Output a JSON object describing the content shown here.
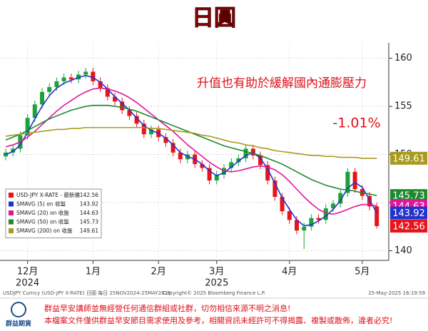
{
  "chart_data": {
    "type": "candlestick",
    "title": "日圓",
    "categories": [
      null,
      null,
      null,
      "12月",
      null,
      null,
      null,
      null,
      null,
      null,
      null,
      null,
      "1月",
      null,
      null,
      null,
      null,
      null,
      null,
      null,
      null,
      "2月",
      null,
      null,
      null,
      null,
      null,
      null,
      null,
      "3月",
      null,
      null,
      null,
      null,
      null,
      null,
      null,
      null,
      null,
      "4月",
      null,
      null,
      null,
      null,
      null,
      null,
      null,
      null,
      null,
      "5月",
      null,
      null
    ],
    "category_years": [
      null,
      null,
      null,
      "2024",
      null,
      null,
      null,
      null,
      null,
      null,
      null,
      null,
      null,
      null,
      null,
      null,
      null,
      null,
      null,
      null,
      null,
      null,
      null,
      null,
      null,
      null,
      null,
      null,
      null,
      "2025",
      null,
      null,
      null,
      null,
      null,
      null,
      null,
      null,
      null,
      null,
      null,
      null,
      null,
      null,
      null,
      null,
      null,
      null,
      null,
      null,
      null,
      null
    ],
    "candles": {
      "name": "USD-JPY X-RATE - 最新價",
      "color": "#e8141c",
      "up_color": "#1aa33a",
      "down_color": "#e8141c",
      "open": [
        149.8,
        150.2,
        150.6,
        152.0,
        153.8,
        155.2,
        156.5,
        157.0,
        157.6,
        158.0,
        157.8,
        158.3,
        158.6,
        157.6,
        156.9,
        156.0,
        155.5,
        154.6,
        154.0,
        153.2,
        152.1,
        152.6,
        151.8,
        151.2,
        150.2,
        149.5,
        150.0,
        149.0,
        148.6,
        147.3,
        147.9,
        148.6,
        149.2,
        149.6,
        150.6,
        149.9,
        148.9,
        147.3,
        145.6,
        144.1,
        143.2,
        142.1,
        142.5,
        143.4,
        143.2,
        144.4,
        144.9,
        146.0,
        148.2,
        146.4,
        145.7,
        144.6
      ],
      "high": [
        150.6,
        151.0,
        152.4,
        154.2,
        155.6,
        156.9,
        157.4,
        158.0,
        158.4,
        158.4,
        158.7,
        159.0,
        159.0,
        158.0,
        157.3,
        156.4,
        155.9,
        155.0,
        154.4,
        153.6,
        153.0,
        153.0,
        152.2,
        151.6,
        150.6,
        150.4,
        150.4,
        149.4,
        149.0,
        148.3,
        149.0,
        149.6,
        150.0,
        151.0,
        151.0,
        150.3,
        149.3,
        147.7,
        146.0,
        144.5,
        143.6,
        142.9,
        143.8,
        143.8,
        144.8,
        145.3,
        146.4,
        148.6,
        148.6,
        146.8,
        146.1,
        145.0
      ],
      "low": [
        149.4,
        149.8,
        150.2,
        151.6,
        153.4,
        154.8,
        156.1,
        156.6,
        157.2,
        157.4,
        157.4,
        157.9,
        157.2,
        156.5,
        155.6,
        155.1,
        154.2,
        153.6,
        152.8,
        151.7,
        151.7,
        151.4,
        150.8,
        149.8,
        149.1,
        149.1,
        148.6,
        148.2,
        146.9,
        146.9,
        147.5,
        148.2,
        148.8,
        149.2,
        149.5,
        148.5,
        146.9,
        145.2,
        143.7,
        142.8,
        141.7,
        140.2,
        142.1,
        142.8,
        142.8,
        144.0,
        144.5,
        145.6,
        146.0,
        145.3,
        144.2,
        142.3
      ],
      "close": [
        150.2,
        150.6,
        152.0,
        153.8,
        155.2,
        156.5,
        157.0,
        157.6,
        158.0,
        157.8,
        158.3,
        158.6,
        157.6,
        156.9,
        156.0,
        155.5,
        154.6,
        154.0,
        153.2,
        152.1,
        152.6,
        151.8,
        151.2,
        150.2,
        149.5,
        150.0,
        149.0,
        148.6,
        147.3,
        147.9,
        148.6,
        149.2,
        149.6,
        150.6,
        149.9,
        148.9,
        147.3,
        145.6,
        144.1,
        143.2,
        142.1,
        142.5,
        143.4,
        143.2,
        144.4,
        144.9,
        146.0,
        148.2,
        146.4,
        145.7,
        144.6,
        142.56
      ]
    },
    "series": [
      {
        "name": "SMAVG (5)  on 收盤",
        "color": "#2233cc",
        "values": [
          150.0,
          150.3,
          151.0,
          152.3,
          153.7,
          155.0,
          156.1,
          156.9,
          157.4,
          157.7,
          158.0,
          158.2,
          158.0,
          157.5,
          156.8,
          156.0,
          155.3,
          154.6,
          153.8,
          153.0,
          152.5,
          152.2,
          151.7,
          151.0,
          150.2,
          149.8,
          149.5,
          149.0,
          148.3,
          147.8,
          148.1,
          148.7,
          149.3,
          149.9,
          150.2,
          149.6,
          148.5,
          147.0,
          145.5,
          144.3,
          143.2,
          142.6,
          142.7,
          143.1,
          143.6,
          144.3,
          145.2,
          146.5,
          147.1,
          146.6,
          145.3,
          143.92
        ]
      },
      {
        "name": "SMAVG (20)  on 收盤",
        "color": "#e0169a",
        "values": [
          150.8,
          151.0,
          151.3,
          151.8,
          152.4,
          153.1,
          153.8,
          154.5,
          155.1,
          155.6,
          156.1,
          156.5,
          156.8,
          156.9,
          156.8,
          156.6,
          156.3,
          155.9,
          155.4,
          154.8,
          154.2,
          153.6,
          153.0,
          152.4,
          151.7,
          151.0,
          150.4,
          149.8,
          149.2,
          148.7,
          148.3,
          148.2,
          148.3,
          148.5,
          148.7,
          148.8,
          148.7,
          148.4,
          147.9,
          147.2,
          146.4,
          145.6,
          144.9,
          144.3,
          143.9,
          143.8,
          144.0,
          144.3,
          144.6,
          144.8,
          144.8,
          144.63
        ]
      },
      {
        "name": "SMAVG (50)  on 收盤",
        "color": "#1e8a2e",
        "values": [
          151.5,
          151.8,
          152.1,
          152.5,
          152.9,
          153.3,
          153.7,
          154.0,
          154.3,
          154.6,
          154.8,
          155.0,
          155.1,
          155.1,
          155.1,
          155.0,
          154.9,
          154.7,
          154.5,
          154.2,
          153.9,
          153.6,
          153.3,
          153.0,
          152.7,
          152.4,
          152.1,
          151.8,
          151.5,
          151.2,
          150.9,
          150.7,
          150.5,
          150.3,
          150.1,
          149.9,
          149.6,
          149.3,
          149.0,
          148.6,
          148.2,
          147.8,
          147.4,
          147.1,
          146.8,
          146.6,
          146.4,
          146.3,
          146.2,
          146.0,
          145.9,
          145.73
        ]
      },
      {
        "name": "SMAVG (200)  on 收盤",
        "color": "#a89a1e",
        "values": [
          151.9,
          152.0,
          152.1,
          152.2,
          152.3,
          152.4,
          152.5,
          152.6,
          152.6,
          152.7,
          152.7,
          152.8,
          152.8,
          152.8,
          152.8,
          152.8,
          152.8,
          152.8,
          152.8,
          152.8,
          152.7,
          152.7,
          152.6,
          152.5,
          152.4,
          152.3,
          152.2,
          152.0,
          151.9,
          151.7,
          151.5,
          151.3,
          151.2,
          151.0,
          150.9,
          150.7,
          150.6,
          150.4,
          150.3,
          150.2,
          150.1,
          150.0,
          149.9,
          149.9,
          149.8,
          149.8,
          149.7,
          149.7,
          149.7,
          149.6,
          149.6,
          149.61
        ]
      }
    ],
    "ylim": [
      139,
      161.6
    ],
    "yticks": [
      140,
      145,
      150,
      155,
      160
    ],
    "grid": true,
    "legend": "lower left",
    "annotations": [
      "升值也有助於緩解國內通膨壓力",
      "-1.01%"
    ],
    "source": "USDJPY Curncy (USD-JPY X-RATE) 日圓  每日 25NOV2024-25MAY2025",
    "copyright": "Copyright© 2025 Bloomberg Finance L.P.",
    "timestamp": "25-May-2025 16:19:59"
  },
  "logo": "群益期貨",
  "disclaimer": [
    "群益早安講師並無經營任何通信群組或社群，切勿相信來源不明之消息!",
    "本檔案文件僅供群益早安節目需求使用及參考，相關資訊未經許可不得揭露、複製或散佈，違者必究!"
  ]
}
